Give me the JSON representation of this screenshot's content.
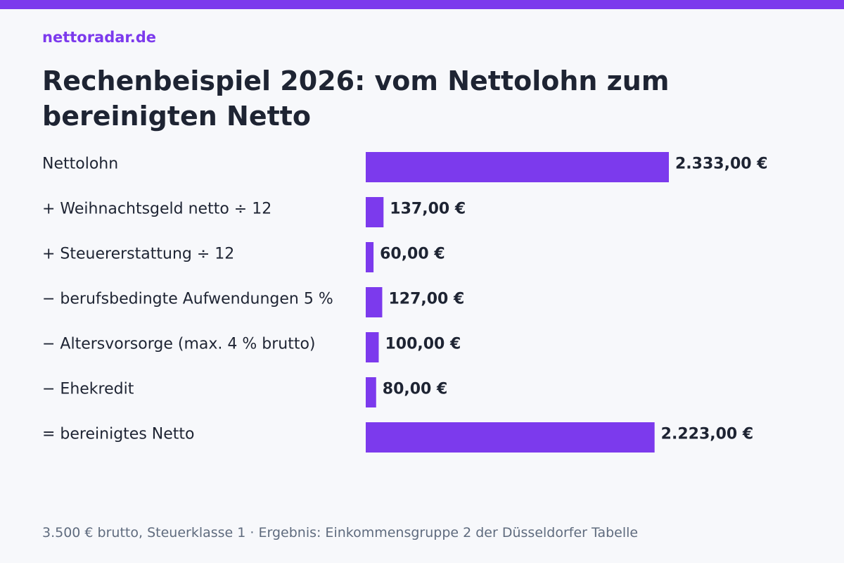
{
  "header": {
    "brand": "nettoradar.de",
    "title": "Rechenbeispiel 2026: vom Nettolohn zum bereinigten Netto"
  },
  "chart_data": {
    "type": "bar",
    "orientation": "horizontal",
    "categories": [
      "Nettolohn",
      "+ Weihnachtsgeld netto ÷ 12",
      "+ Steuererstattung ÷ 12",
      "− berufsbedingte Aufwendungen 5 %",
      "− Altersvorsorge (max. 4 % brutto)",
      "− Ehekredit",
      "= bereinigtes Netto"
    ],
    "values": [
      2333.0,
      137.0,
      60.0,
      127.0,
      100.0,
      80.0,
      2223.0
    ],
    "value_labels": [
      "2.333,00 €",
      "137,00 €",
      "60,00 €",
      "127,00 €",
      "100,00 €",
      "80,00 €",
      "2.223,00 €"
    ],
    "bar_color": "#7c3aed",
    "grid": false,
    "legend": false
  },
  "footnote": "3.500 € brutto, Steuerklasse 1 · Ergebnis: Einkommensgruppe 2 der Düsseldorfer Tabelle",
  "colors": {
    "accent": "#7c3aed",
    "text": "#1e2433",
    "muted": "#5f6b7e",
    "background": "#f7f8fb"
  }
}
